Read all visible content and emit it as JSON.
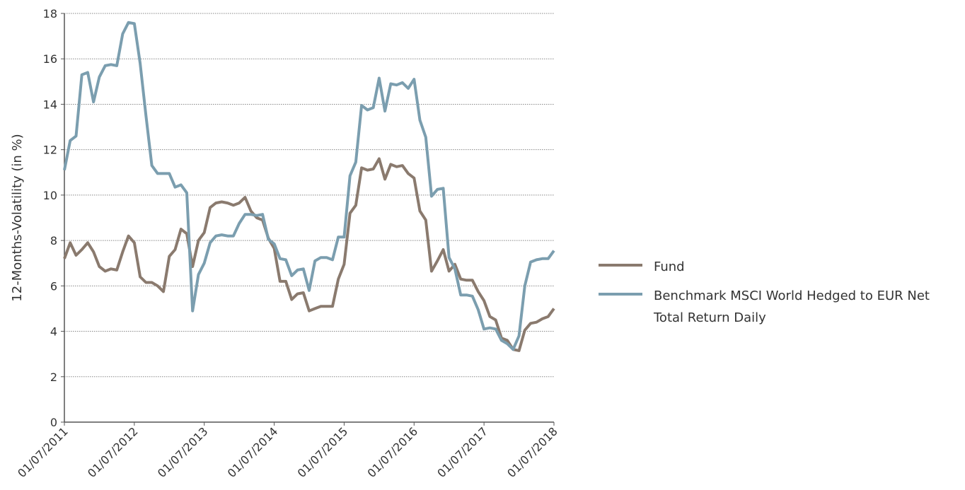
{
  "chart_data": {
    "type": "line",
    "y_label": "12-Months-Volatility (in %)",
    "x": [
      "01/07/2011",
      "01/08/2011",
      "01/09/2011",
      "01/10/2011",
      "01/11/2011",
      "01/12/2011",
      "01/01/2012",
      "01/02/2012",
      "01/03/2012",
      "01/04/2012",
      "01/05/2012",
      "01/06/2012",
      "01/07/2012",
      "01/08/2012",
      "01/09/2012",
      "01/10/2012",
      "01/11/2012",
      "01/12/2012",
      "01/01/2013",
      "01/02/2013",
      "01/03/2013",
      "01/04/2013",
      "01/05/2013",
      "01/06/2013",
      "01/07/2013",
      "01/08/2013",
      "01/09/2013",
      "01/10/2013",
      "01/11/2013",
      "01/12/2013",
      "01/01/2014",
      "01/02/2014",
      "01/03/2014",
      "01/04/2014",
      "01/05/2014",
      "01/06/2014",
      "01/07/2014",
      "01/08/2014",
      "01/09/2014",
      "01/10/2014",
      "01/11/2014",
      "01/12/2014",
      "01/01/2015",
      "01/02/2015",
      "01/03/2015",
      "01/04/2015",
      "01/05/2015",
      "01/06/2015",
      "01/07/2015",
      "01/08/2015",
      "01/09/2015",
      "01/10/2015",
      "01/11/2015",
      "01/12/2015",
      "01/01/2016",
      "01/02/2016",
      "01/03/2016",
      "01/04/2016",
      "01/05/2016",
      "01/06/2016",
      "01/07/2016",
      "01/08/2016",
      "01/09/2016",
      "01/10/2016",
      "01/11/2016",
      "01/12/2016",
      "01/01/2017",
      "01/02/2017",
      "01/03/2017",
      "01/04/2017",
      "01/05/2017",
      "01/06/2017",
      "01/07/2017",
      "01/08/2017",
      "01/09/2017",
      "01/10/2017",
      "01/11/2017",
      "01/12/2017",
      "01/01/2018",
      "01/02/2018",
      "01/03/2018",
      "01/04/2018",
      "01/05/2018",
      "01/06/2018",
      "01/07/2018"
    ],
    "series": [
      {
        "name": "Fund",
        "color": "#8a7a6e",
        "values": [
          7.2,
          7.9,
          7.35,
          7.6,
          7.9,
          7.5,
          6.85,
          6.65,
          6.75,
          6.7,
          7.5,
          8.2,
          7.9,
          6.4,
          6.15,
          6.15,
          6.0,
          5.75,
          7.3,
          7.6,
          8.5,
          8.3,
          6.85,
          8.0,
          8.35,
          9.45,
          9.65,
          9.7,
          9.65,
          9.55,
          9.65,
          9.9,
          9.3,
          9.0,
          8.9,
          8.1,
          7.65,
          6.2,
          6.2,
          5.4,
          5.65,
          5.7,
          4.9,
          5.0,
          5.1,
          5.1,
          5.1,
          6.3,
          6.95,
          9.2,
          9.55,
          11.2,
          11.1,
          11.15,
          11.6,
          10.7,
          11.35,
          11.25,
          11.3,
          10.95,
          10.75,
          9.3,
          8.9,
          6.65,
          7.1,
          7.6,
          6.65,
          6.95,
          6.3,
          6.25,
          6.25,
          5.75,
          5.35,
          4.65,
          4.5,
          3.7,
          3.6,
          3.2,
          3.15,
          4.05,
          4.35,
          4.4,
          4.55,
          4.65,
          5.0
        ]
      },
      {
        "name": "Benchmark MSCI World Hedged to EUR Net Total Return Daily",
        "color": "#7b9eaf",
        "values": [
          11.1,
          12.4,
          12.6,
          15.3,
          15.4,
          14.1,
          15.2,
          15.7,
          15.75,
          15.7,
          17.1,
          17.6,
          17.55,
          15.8,
          13.5,
          11.3,
          10.95,
          10.95,
          10.95,
          10.35,
          10.45,
          10.1,
          4.9,
          6.5,
          7.0,
          7.9,
          8.2,
          8.25,
          8.2,
          8.2,
          8.75,
          9.15,
          9.15,
          9.1,
          9.15,
          8.05,
          7.85,
          7.2,
          7.15,
          6.45,
          6.7,
          6.75,
          5.8,
          7.1,
          7.25,
          7.25,
          7.15,
          8.15,
          8.15,
          10.85,
          11.45,
          13.95,
          13.75,
          13.85,
          15.15,
          13.7,
          14.9,
          14.85,
          14.95,
          14.7,
          15.1,
          13.3,
          12.55,
          9.95,
          10.25,
          10.3,
          7.25,
          6.75,
          5.6,
          5.6,
          5.55,
          4.95,
          4.1,
          4.15,
          4.1,
          3.6,
          3.45,
          3.2,
          3.8,
          6.0,
          7.05,
          7.15,
          7.2,
          7.2,
          7.55
        ]
      }
    ],
    "xlim": [
      "01/07/2011",
      "01/07/2018"
    ],
    "xticks": [
      "01/07/2011",
      "01/07/2012",
      "01/07/2013",
      "01/07/2014",
      "01/07/2015",
      "01/07/2016",
      "01/07/2017",
      "01/07/2018"
    ],
    "ylim": [
      0,
      18
    ],
    "yticks": [
      0,
      2,
      4,
      6,
      8,
      10,
      12,
      14,
      16,
      18
    ],
    "grid": true,
    "legend": "right"
  }
}
